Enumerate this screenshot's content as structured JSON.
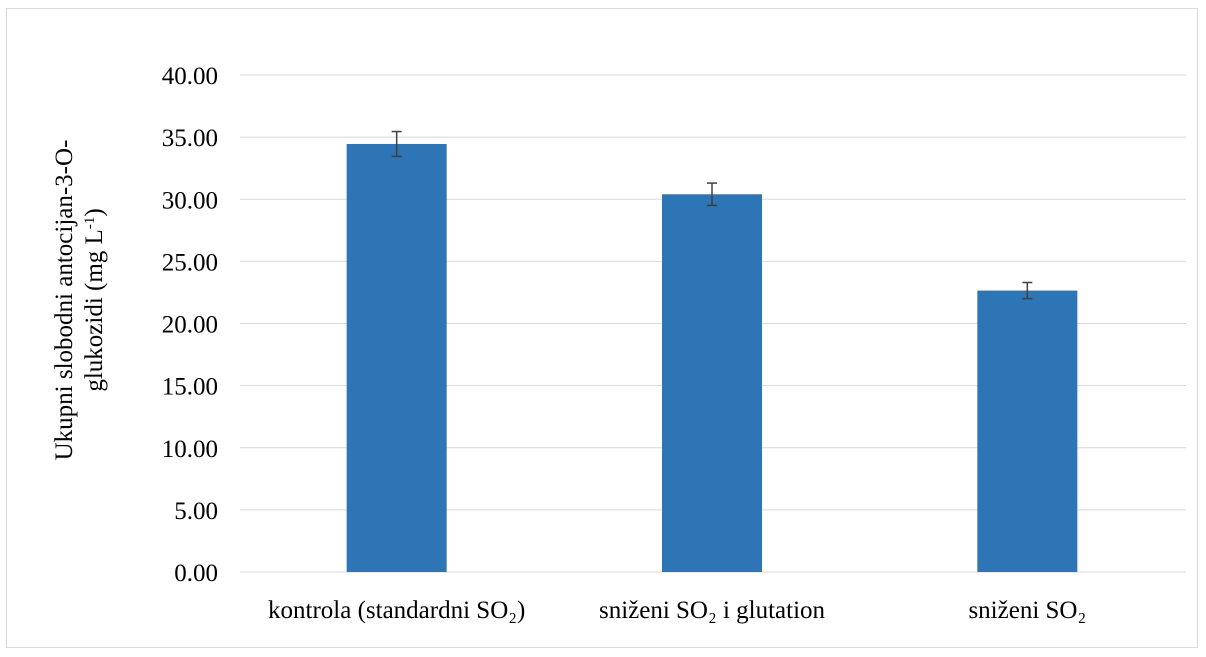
{
  "chart_data": {
    "type": "bar",
    "title": "",
    "ylabel_line1": "Ukupni slobodni antocijan-3-O-",
    "ylabel_line2": "glukozidi (mg L-1)",
    "categories": [
      "kontrola (standardni SO₂)",
      "sniženi SO₂ i glutation",
      "sniženi SO₂"
    ],
    "series": [
      {
        "values": [
          34.45,
          30.4,
          22.65
        ],
        "errors": [
          1.0,
          0.9,
          0.65
        ]
      }
    ],
    "ylim": [
      0,
      40
    ],
    "yticks": [
      0,
      5,
      10,
      15,
      20,
      25,
      30,
      35,
      40
    ],
    "ytick_labels": [
      "0.00",
      "5.00",
      "10.00",
      "15.00",
      "20.00",
      "25.00",
      "30.00",
      "35.00",
      "40.00"
    ],
    "grid": true,
    "legend": "none",
    "colors": {
      "bar": "#2e75b6",
      "grid": "#d9d9d9",
      "error_bar": "#404040"
    }
  }
}
